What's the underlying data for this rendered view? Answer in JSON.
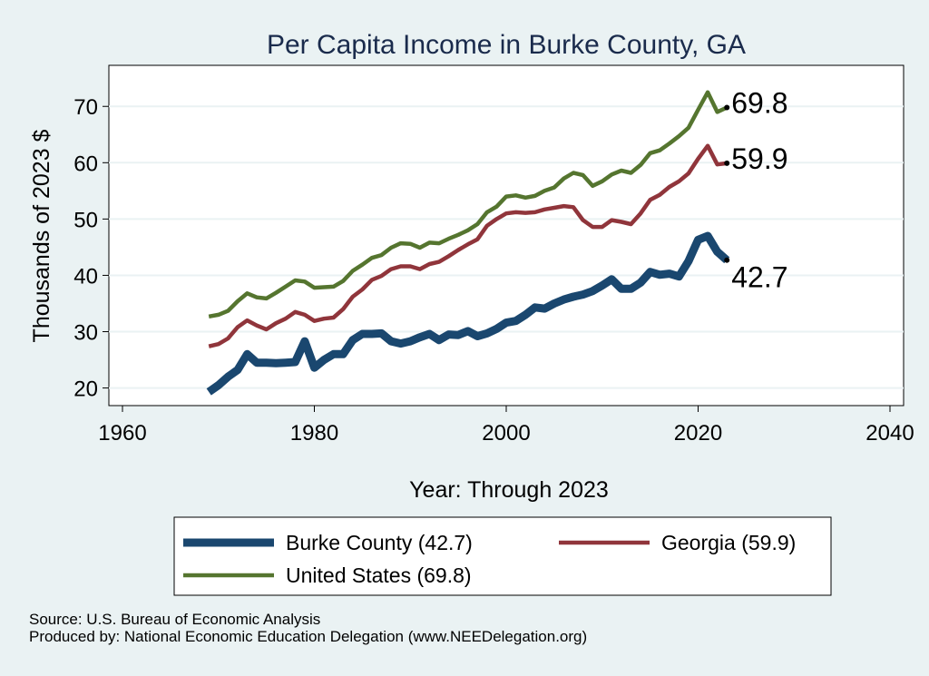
{
  "chart_data": {
    "type": "line",
    "title": "Per Capita Income in Burke County, GA",
    "xlabel": "Year: Through 2023",
    "ylabel": "Thousands of 2023 $",
    "xlim": [
      1960,
      2040
    ],
    "ylim": [
      18,
      76
    ],
    "xticks": [
      1960,
      1980,
      2000,
      2020,
      2040
    ],
    "yticks": [
      20,
      30,
      40,
      50,
      60,
      70
    ],
    "grid": "horizontal",
    "legend_position": "bottom",
    "x": [
      1969,
      1970,
      1971,
      1972,
      1973,
      1974,
      1975,
      1976,
      1977,
      1978,
      1979,
      1980,
      1981,
      1982,
      1983,
      1984,
      1985,
      1986,
      1987,
      1988,
      1989,
      1990,
      1991,
      1992,
      1993,
      1994,
      1995,
      1996,
      1997,
      1998,
      1999,
      2000,
      2001,
      2002,
      2003,
      2004,
      2005,
      2006,
      2007,
      2008,
      2009,
      2010,
      2011,
      2012,
      2013,
      2014,
      2015,
      2016,
      2017,
      2018,
      2019,
      2020,
      2021,
      2022,
      2023
    ],
    "series": [
      {
        "name": "Burke County (42.7)",
        "color": "#1a476f",
        "end_label": "42.7",
        "values": [
          19.3,
          20.5,
          22.0,
          23.2,
          26.0,
          24.5,
          24.5,
          24.4,
          24.5,
          24.6,
          28.3,
          23.6,
          25.0,
          26.0,
          26.0,
          28.5,
          29.6,
          29.6,
          29.7,
          28.3,
          27.9,
          28.3,
          29.0,
          29.6,
          28.5,
          29.5,
          29.4,
          30.1,
          29.2,
          29.7,
          30.5,
          31.6,
          31.9,
          33.0,
          34.3,
          34.1,
          35.0,
          35.7,
          36.2,
          36.6,
          37.2,
          38.2,
          39.3,
          37.6,
          37.6,
          38.7,
          40.6,
          40.1,
          40.3,
          39.8,
          42.5,
          46.3,
          47.0,
          44.2,
          42.7
        ]
      },
      {
        "name": "Georgia (59.9)",
        "color": "#90353b",
        "end_label": "59.9",
        "values": [
          27.4,
          27.8,
          28.8,
          30.8,
          32.0,
          31.1,
          30.4,
          31.5,
          32.3,
          33.5,
          33.0,
          31.9,
          32.3,
          32.5,
          34.0,
          36.2,
          37.5,
          39.2,
          39.9,
          41.1,
          41.6,
          41.6,
          41.1,
          42.0,
          42.4,
          43.4,
          44.5,
          45.5,
          46.4,
          48.8,
          50.0,
          51.0,
          51.2,
          51.1,
          51.2,
          51.7,
          52.0,
          52.3,
          52.1,
          49.8,
          48.6,
          48.6,
          49.8,
          49.5,
          49.1,
          51.0,
          53.4,
          54.3,
          55.7,
          56.7,
          58.1,
          60.7,
          63.0,
          59.7,
          59.9
        ]
      },
      {
        "name": "United States (69.8)",
        "color": "#55752f",
        "end_label": "69.8",
        "values": [
          32.7,
          33.0,
          33.7,
          35.4,
          36.8,
          36.1,
          35.9,
          36.9,
          38.0,
          39.1,
          38.9,
          37.8,
          37.9,
          38.0,
          39.0,
          40.8,
          41.9,
          43.1,
          43.6,
          44.9,
          45.7,
          45.6,
          44.9,
          45.8,
          45.7,
          46.5,
          47.2,
          48.0,
          49.1,
          51.2,
          52.2,
          54.0,
          54.2,
          53.8,
          54.1,
          55.0,
          55.6,
          57.2,
          58.2,
          57.8,
          55.9,
          56.7,
          57.9,
          58.6,
          58.2,
          59.6,
          61.7,
          62.2,
          63.4,
          64.7,
          66.2,
          69.4,
          72.5,
          69.0,
          69.8
        ]
      }
    ]
  },
  "footer": {
    "source": "Source: U.S. Bureau of Economic Analysis",
    "produced_by": "Produced by: National Economic Education Delegation (www.NEEDelegation.org)"
  }
}
